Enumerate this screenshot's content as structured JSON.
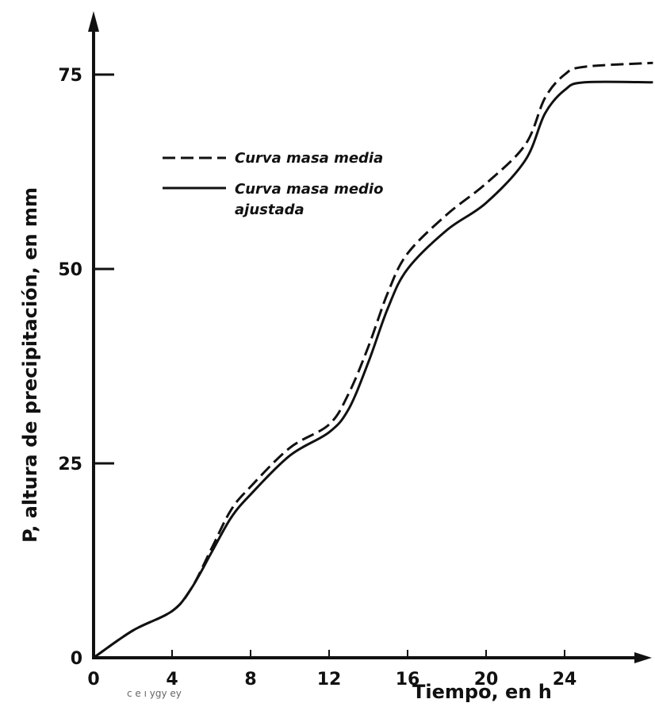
{
  "chart_data": {
    "type": "line",
    "title": "",
    "xlabel": "Tiempo, en h",
    "ylabel": "P, altura de precipitación, en mm",
    "xlim": [
      0,
      30
    ],
    "ylim": [
      0,
      80
    ],
    "x_ticks": [
      "0",
      "4",
      "8",
      "12",
      "16",
      "20",
      "24"
    ],
    "y_ticks": [
      "0",
      "25",
      "50",
      "75"
    ],
    "grid": false,
    "legend_position": "upper-left",
    "series": [
      {
        "name": "Curva masa media",
        "style": "dashed",
        "color": "#111111",
        "x": [
          0,
          2,
          4,
          5,
          6,
          7,
          8,
          10,
          12,
          13,
          14,
          15,
          16,
          18,
          20,
          22,
          23,
          24,
          25,
          28.5
        ],
        "y": [
          0,
          3.5,
          6,
          9,
          14,
          19,
          22,
          27,
          30,
          34,
          40,
          47,
          52,
          57,
          61,
          66,
          72,
          75,
          76,
          76.5
        ]
      },
      {
        "name": "Curva masa medio ajustada",
        "style": "solid",
        "color": "#111111",
        "x": [
          0,
          2,
          4,
          5,
          6,
          7,
          8,
          10,
          12,
          13,
          14,
          15,
          16,
          18,
          20,
          22,
          23,
          24,
          25,
          28.5
        ],
        "y": [
          0,
          3.5,
          6,
          9,
          13.5,
          18,
          21,
          26,
          29,
          32,
          38,
          45,
          50,
          55,
          58.5,
          64,
          70,
          73,
          74,
          74
        ]
      }
    ],
    "legend_labels": [
      "Curva masa media",
      "Curva masa medio",
      "ajustada"
    ]
  },
  "caption_noise": "c e ı ygy ey"
}
